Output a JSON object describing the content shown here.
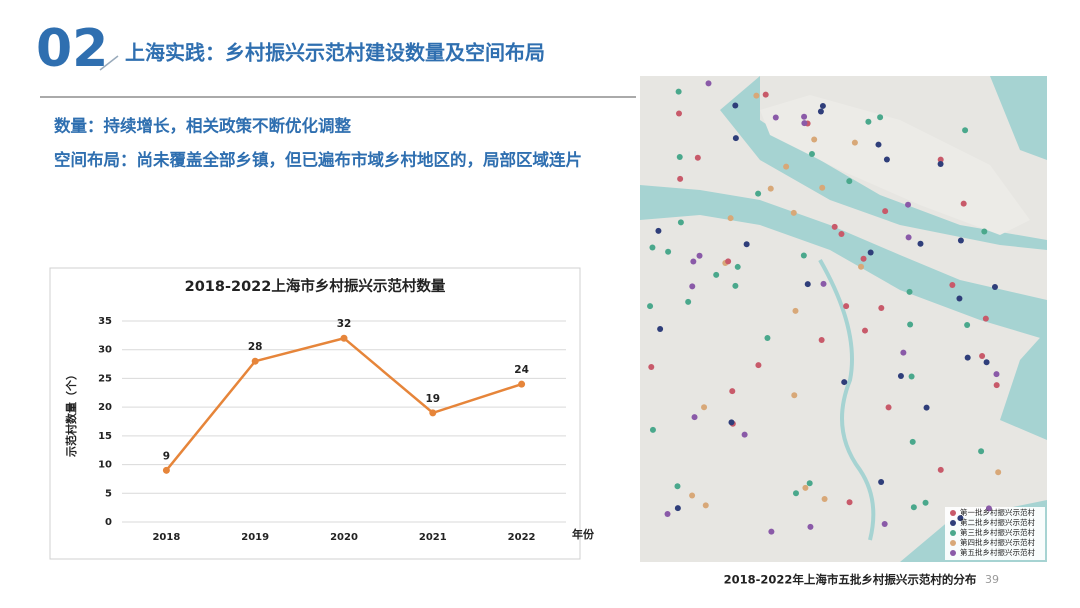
{
  "header": {
    "number": "02",
    "title": "上海实践：乡村振兴示范村建设数量及空间布局"
  },
  "bullets": [
    "数量：持续增长，相关政策不断优化调整",
    "空间布局：尚未覆盖全部乡镇，但已遍布市域乡村地区的，局部区域连片"
  ],
  "chart_data": {
    "type": "line",
    "title": "2018-2022上海市乡村振兴示范村数量",
    "y_label": "示范村数量（个）",
    "x_label": "年份",
    "categories": [
      "2018",
      "2019",
      "2020",
      "2021",
      "2022"
    ],
    "values": [
      9,
      28,
      32,
      19,
      24
    ],
    "color": "#e6853a",
    "ylim": [
      0,
      35
    ],
    "yticks": [
      0,
      5,
      10,
      15,
      20,
      25,
      30,
      35
    ],
    "grid": true
  },
  "map": {
    "caption": "2018-2022年上海市五批乡村振兴示范村的分布",
    "legend": [
      {
        "name": "第一批乡村振兴示范村",
        "color": "#c85a6a"
      },
      {
        "name": "第二批乡村振兴示范村",
        "color": "#2f3e7a"
      },
      {
        "name": "第三批乡村振兴示范村",
        "color": "#4aa88c"
      },
      {
        "name": "第四批乡村振兴示范村",
        "color": "#d8a878"
      },
      {
        "name": "第五批乡村振兴示范村",
        "color": "#8a5aa8"
      }
    ]
  },
  "page_number": "39"
}
